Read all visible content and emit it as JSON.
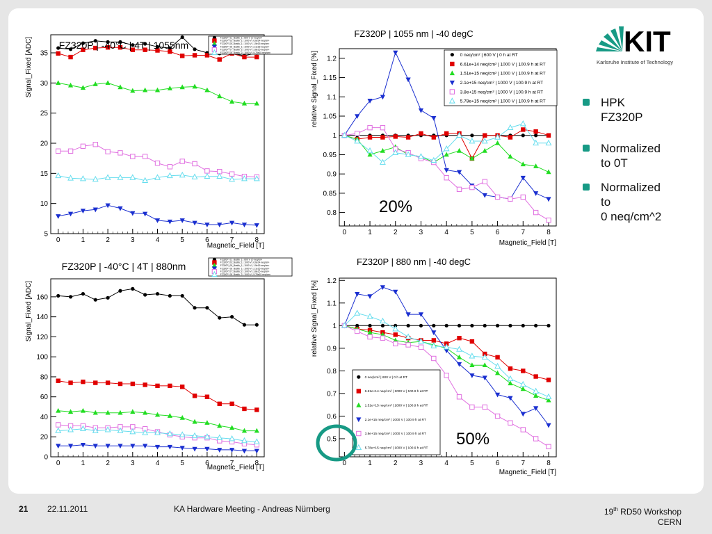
{
  "logo": {
    "text": "KIT",
    "subtitle": "Karlsruhe Institute of Technology"
  },
  "bullets": [
    {
      "text": "HPK\nFZ320P"
    },
    {
      "text": "Normalized\nto 0T"
    },
    {
      "text": "Normalized\nto\n0 neq/cm^2"
    }
  ],
  "annotations": {
    "pct20": "20%",
    "pct50": "50%"
  },
  "footer": {
    "page": "21",
    "date": "22.11.2011",
    "meeting": "KA Hardware Meeting - Andreas Nürnberg",
    "workshop_pre": "19",
    "workshop_sup": "th",
    "workshop_post": " RD50 Workshop",
    "place": "CERN"
  },
  "colors": {
    "s1": "#000000",
    "s2": "#e00000",
    "s3": "#22dd22",
    "s4": "#1a2fd0",
    "s5": "#e070e0",
    "s6": "#66ddee",
    "accent": "#179a85"
  },
  "chart_data": [
    {
      "type": "line",
      "title": "FZ320P | -40°C | 4T | 1055nm",
      "xlabel": "Magnetic_Field [T]",
      "ylabel": "Signal_Fixed [ADC]",
      "xlim": [
        -0.3,
        8.3
      ],
      "ylim": [
        5,
        38
      ],
      "xticks": [
        0,
        1,
        2,
        3,
        4,
        5,
        6,
        7,
        8
      ],
      "yticks": [
        5,
        10,
        15,
        20,
        25,
        30,
        35
      ],
      "x": [
        0,
        0.5,
        1,
        1.5,
        2,
        2.5,
        3,
        3.5,
        4,
        4.5,
        5,
        5.5,
        6,
        6.5,
        7,
        7.5,
        8
      ],
      "legend": "top-right",
      "series": [
        {
          "name": "FZ320P_01_Bostik_1 | 600 V | 0 neq/cm²",
          "values": [
            35.8,
            35.6,
            36.6,
            37.0,
            36.8,
            36.8,
            36.3,
            36.5,
            36.0,
            35.8,
            37.6,
            35.6,
            35.0,
            34.9,
            34.9,
            34.5,
            35.0
          ]
        },
        {
          "name": "FZ320P_03_Bostik_1 | 1000 V | 6.6e14 neq/cm²",
          "values": [
            34.9,
            34.3,
            35.5,
            35.8,
            35.9,
            35.9,
            35.5,
            35.5,
            35.4,
            35.2,
            34.5,
            34.6,
            34.6,
            33.9,
            34.9,
            34.3,
            34.3
          ]
        },
        {
          "name": "FZ320P_05_Bostik_1 | 1000 V | 1.5e15 neq/cm²",
          "values": [
            30.0,
            29.6,
            29.2,
            29.8,
            30.0,
            29.3,
            28.7,
            28.8,
            28.8,
            29.1,
            29.3,
            29.4,
            28.8,
            27.8,
            26.9,
            26.6,
            26.6
          ]
        },
        {
          "name": "FZ320P_06_Bostik_1 | 1000 V | 2.1e15 neq/cm²",
          "values": [
            7.9,
            8.3,
            8.8,
            9.0,
            9.7,
            9.2,
            8.4,
            8.3,
            7.2,
            7.0,
            7.2,
            6.8,
            6.5,
            6.5,
            6.8,
            6.5,
            6.4
          ]
        },
        {
          "name": "FZ320P_07_Bostik_2 | 1000 V | 3.8e15 neq/cm²",
          "values": [
            18.7,
            18.7,
            19.5,
            19.8,
            18.6,
            18.4,
            17.8,
            17.8,
            16.7,
            16.1,
            17.0,
            16.6,
            15.4,
            15.3,
            14.9,
            14.5,
            14.4
          ]
        },
        {
          "name": "FZ320P_08_Bostik_2 | 1000 V | 5.78e15 neq/cm²",
          "values": [
            14.6,
            14.2,
            14.1,
            14.0,
            14.3,
            14.3,
            14.3,
            13.8,
            14.3,
            14.6,
            14.7,
            14.4,
            14.5,
            14.5,
            14.0,
            14.1,
            14.1
          ]
        }
      ]
    },
    {
      "type": "line",
      "title": "FZ320P | 1055 nm | -40 degC",
      "xlabel": "Magnetic_Field [T]",
      "ylabel": "relative Signal_Fixed [%]",
      "xlim": [
        -0.2,
        8.3
      ],
      "ylim": [
        0.765,
        1.225
      ],
      "xticks": [
        0,
        1,
        2,
        3,
        4,
        5,
        6,
        7,
        8
      ],
      "yticks": [
        0.8,
        0.85,
        0.9,
        0.95,
        1,
        1.05,
        1.1,
        1.15,
        1.2
      ],
      "x": [
        0,
        0.5,
        1,
        1.5,
        2,
        2.5,
        3,
        3.5,
        4,
        4.5,
        5,
        5.5,
        6,
        6.5,
        7,
        7.5,
        8
      ],
      "legend": "top-right",
      "series": [
        {
          "name": "0 neq/cm² | 600 V | 0 h at RT",
          "values": [
            1.0,
            1.0,
            1.0,
            1.0,
            1.0,
            1.0,
            1.0,
            1.0,
            1.0,
            1.0,
            1.0,
            1.0,
            1.0,
            1.0,
            1.0,
            1.0,
            1.0
          ]
        },
        {
          "name": "6.61e+14 neq/cm² | 1000 V | 100.9 h at RT",
          "values": [
            1.0,
            0.99,
            0.995,
            0.995,
            0.997,
            0.995,
            1.005,
            0.995,
            1.005,
            1.005,
            0.94,
            1.0,
            1.0,
            0.995,
            1.015,
            1.01,
            1.0
          ]
        },
        {
          "name": "1.51e+15 neq/cm² | 1000 V | 100.9 h at RT",
          "values": [
            1.0,
            0.99,
            0.95,
            0.96,
            0.97,
            0.95,
            0.945,
            0.93,
            0.95,
            0.96,
            0.94,
            0.96,
            0.98,
            0.945,
            0.925,
            0.92,
            0.905
          ]
        },
        {
          "name": "2.1e+15 neq/cm² | 1000 V | 100.9 h at RT",
          "values": [
            1.0,
            1.05,
            1.09,
            1.1,
            1.215,
            1.145,
            1.065,
            1.045,
            0.91,
            0.905,
            0.87,
            0.845,
            0.84,
            0.835,
            0.89,
            0.85,
            0.835
          ]
        },
        {
          "name": "3.8e+15 neq/cm² | 1000 V | 100.9 h at RT",
          "values": [
            1.0,
            1.005,
            1.02,
            1.02,
            0.965,
            0.955,
            0.94,
            0.93,
            0.89,
            0.86,
            0.865,
            0.88,
            0.84,
            0.835,
            0.84,
            0.8,
            0.78
          ]
        },
        {
          "name": "5.78e+15 neq/cm² | 1000 V | 100.9 h at RT",
          "values": [
            1.0,
            0.985,
            0.96,
            0.93,
            0.955,
            0.95,
            0.945,
            0.935,
            0.965,
            1.0,
            0.985,
            0.985,
            0.995,
            1.02,
            1.03,
            0.98,
            0.98
          ]
        }
      ]
    },
    {
      "type": "line",
      "title": "FZ320P | -40°C | 4T | 880nm",
      "xlabel": "Magnetic_Field [T]",
      "ylabel": "Signal_Fixed [ADC]",
      "xlim": [
        -0.3,
        8.3
      ],
      "ylim": [
        0,
        178
      ],
      "xticks": [
        0,
        1,
        2,
        3,
        4,
        5,
        6,
        7,
        8
      ],
      "yticks": [
        0,
        20,
        40,
        60,
        80,
        100,
        120,
        140,
        160
      ],
      "x": [
        0,
        0.5,
        1,
        1.5,
        2,
        2.5,
        3,
        3.5,
        4,
        4.5,
        5,
        5.5,
        6,
        6.5,
        7,
        7.5,
        8
      ],
      "legend": "top-right",
      "series": [
        {
          "name": "FZ320P_01_Bostik_1 | 600 V | 0 neq/cm²",
          "values": [
            161,
            160,
            163,
            157,
            159,
            166,
            168,
            162,
            163,
            161,
            161,
            149,
            149,
            139,
            140,
            132,
            132
          ]
        },
        {
          "name": "FZ320P_03_Bostik_1 | 1000 V | 6.6e14 neq/cm²",
          "values": [
            76,
            74,
            75,
            74,
            74,
            73,
            73,
            72,
            71,
            71,
            70,
            61,
            60,
            53,
            53,
            48,
            47
          ]
        },
        {
          "name": "FZ320P_05_Bostik_1 | 1000 V | 1.5e15 neq/cm²",
          "values": [
            46,
            45,
            46,
            44,
            44,
            44,
            45,
            44,
            42,
            41,
            39,
            35,
            34,
            31,
            29,
            26,
            26
          ]
        },
        {
          "name": "FZ320P_06_Bostik_1 | 1000 V | 2.1e15 neq/cm²",
          "values": [
            11,
            11,
            12,
            11,
            11,
            11,
            11,
            11,
            10,
            10,
            9,
            8,
            8,
            7,
            7,
            6,
            6
          ]
        },
        {
          "name": "FZ320P_07_Bostik_2 | 1000 V | 3.8e15 neq/cm²",
          "values": [
            32,
            31,
            31,
            29,
            29,
            30,
            30,
            28,
            25,
            22,
            20,
            19,
            19,
            16,
            15,
            13,
            12
          ]
        },
        {
          "name": "FZ320P_08_Bostik_2 | 1000 V | 5.78e15 neq/cm²",
          "values": [
            26,
            27,
            28,
            26,
            27,
            26,
            25,
            24,
            24,
            23,
            22,
            21,
            20,
            19,
            18,
            16,
            15
          ]
        }
      ]
    },
    {
      "type": "line",
      "title": "FZ320P | 880 nm | -40 degC",
      "xlabel": "Magnetic_Field [T]",
      "ylabel": "relative Signal_Fixed [%]",
      "xlim": [
        -0.2,
        8.3
      ],
      "ylim": [
        0.42,
        1.21
      ],
      "xticks": [
        0,
        1,
        2,
        3,
        4,
        5,
        6,
        7,
        8
      ],
      "yticks": [
        0.5,
        0.6,
        0.7,
        0.8,
        0.9,
        1,
        1.1,
        1.2
      ],
      "x": [
        0,
        0.5,
        1,
        1.5,
        2,
        2.5,
        3,
        3.5,
        4,
        4.5,
        5,
        5.5,
        6,
        6.5,
        7,
        7.5,
        8
      ],
      "legend": "bottom-left",
      "series": [
        {
          "name": "0 neq/cm² | 600 V | 0 h at RT",
          "values": [
            1.0,
            1.0,
            1.0,
            1.0,
            1.0,
            1.0,
            1.0,
            1.0,
            1.0,
            1.0,
            1.0,
            1.0,
            1.0,
            1.0,
            1.0,
            1.0,
            1.0
          ]
        },
        {
          "name": "6.61e+14 neq/cm² | 1000 V | 100.9 h at RT",
          "values": [
            1.0,
            0.985,
            0.98,
            0.97,
            0.96,
            0.945,
            0.935,
            0.935,
            0.92,
            0.945,
            0.93,
            0.875,
            0.86,
            0.81,
            0.8,
            0.775,
            0.76
          ]
        },
        {
          "name": "1.51e+15 neq/cm² | 1000 V | 100.9 h at RT",
          "values": [
            1.0,
            0.985,
            0.97,
            0.96,
            0.935,
            0.925,
            0.93,
            0.915,
            0.9,
            0.86,
            0.825,
            0.825,
            0.79,
            0.745,
            0.72,
            0.69,
            0.67
          ]
        },
        {
          "name": "2.1e+15 neq/cm² | 1000 V | 100.9 h at RT",
          "values": [
            1.0,
            1.14,
            1.13,
            1.17,
            1.15,
            1.05,
            1.05,
            0.97,
            0.89,
            0.83,
            0.78,
            0.77,
            0.695,
            0.68,
            0.61,
            0.635,
            0.56
          ]
        },
        {
          "name": "3.8e+15 neq/cm² | 1000 V | 100.9 h at RT",
          "values": [
            1.0,
            0.975,
            0.95,
            0.945,
            0.92,
            0.915,
            0.905,
            0.855,
            0.78,
            0.685,
            0.64,
            0.64,
            0.6,
            0.57,
            0.54,
            0.5,
            0.465
          ]
        },
        {
          "name": "5.78e+15 neq/cm² | 1000 V | 100.9 h at RT",
          "values": [
            1.0,
            1.055,
            1.04,
            1.02,
            0.985,
            0.95,
            0.93,
            0.91,
            0.905,
            0.895,
            0.865,
            0.86,
            0.82,
            0.765,
            0.74,
            0.71,
            0.685
          ]
        }
      ]
    }
  ]
}
